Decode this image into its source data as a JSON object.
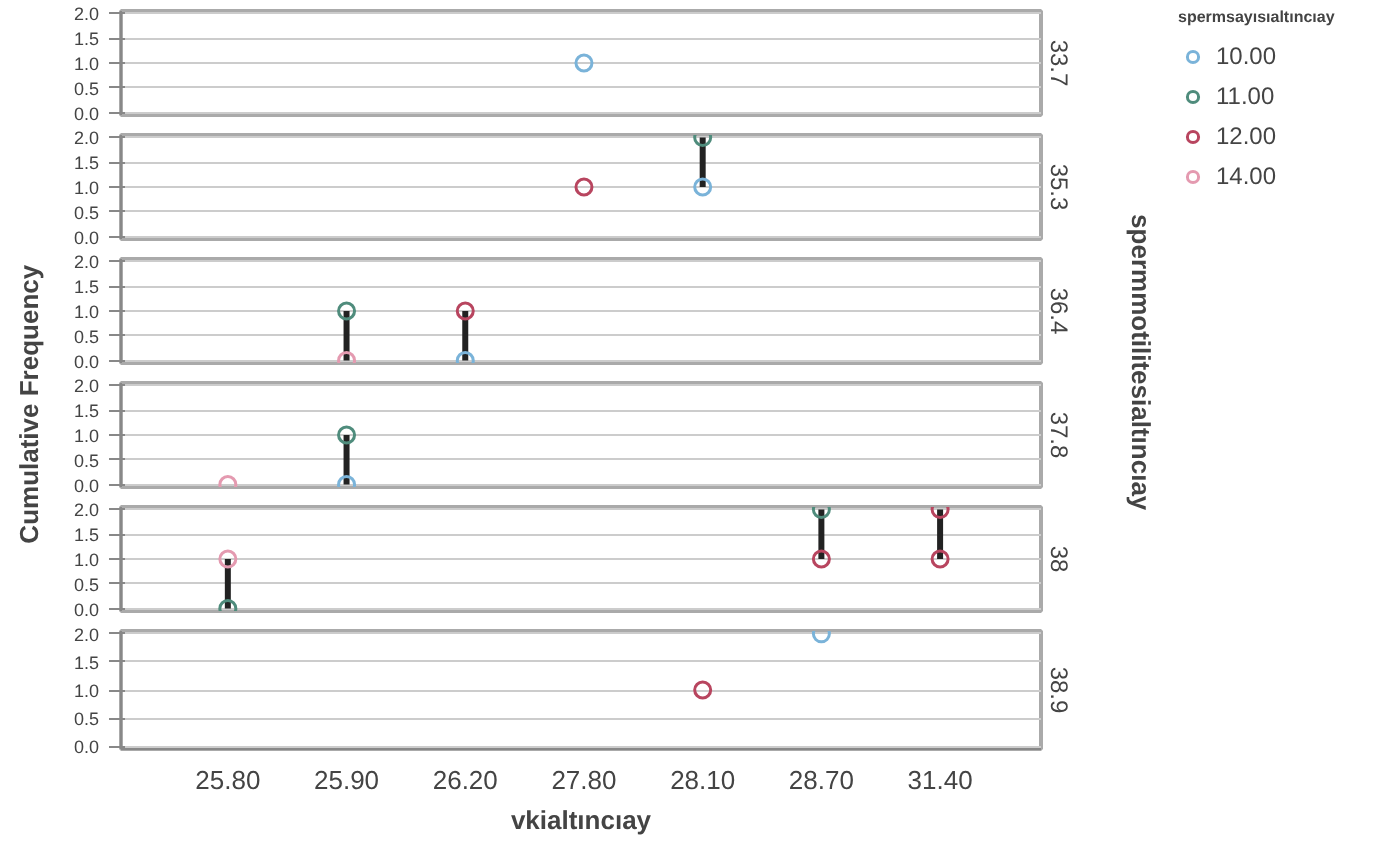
{
  "chart_data": [
    {
      "type": "scatter",
      "title": "33.7",
      "categories": [
        "25.80",
        "25.90",
        "26.20",
        "27.80",
        "28.10",
        "28.70",
        "31.40"
      ],
      "ylim": [
        -0.05,
        2.05
      ],
      "yticks": [
        {
          "value": 0,
          "label": "0.0"
        },
        {
          "value": 0.5,
          "label": "0.5"
        },
        {
          "value": 1,
          "label": "1.0"
        },
        {
          "value": 1.5,
          "label": "1.5"
        },
        {
          "value": 2,
          "label": "2.0"
        }
      ],
      "grid": "y",
      "marker": "circle",
      "tick_labels": "y",
      "ylabel": "Cumulative Frequency",
      "y2label": "spermmotilitesialtıncıay",
      "legend": "right",
      "legend_title": "spermsayısıaltıncıay",
      "series": [
        {
          "name": "10.00",
          "color": "#7ab3d9",
          "x": [
            "27.80"
          ],
          "values": [
            1
          ]
        }
      ]
    },
    {
      "type": "scatter",
      "title": "35.3",
      "legend": "right",
      "categories": [
        "25.80",
        "25.90",
        "26.20",
        "27.80",
        "28.10",
        "28.70",
        "31.40"
      ],
      "ylim": [
        -0.05,
        2.05
      ],
      "yticks": [
        {
          "value": 0,
          "label": "0.0"
        },
        {
          "value": 0.5,
          "label": "0.5"
        },
        {
          "value": 1,
          "label": "1.0"
        },
        {
          "value": 1.5,
          "label": "1.5"
        },
        {
          "value": 2,
          "label": "2.0"
        }
      ],
      "grid": "y",
      "marker": "circle",
      "tick_labels": "y",
      "series": [
        {
          "type": "line",
          "marker": "none",
          "color": "#222222",
          "x": [
            "28.10",
            "28.10"
          ],
          "values": [
            1,
            2
          ]
        },
        {
          "color": "#7ab3d9",
          "x": [
            "28.10"
          ],
          "values": [
            1
          ]
        },
        {
          "name": "11.00",
          "color": "#4f8c7c",
          "x": [
            "28.10"
          ],
          "values": [
            2
          ]
        },
        {
          "name": "12.00",
          "color": "#b8455f",
          "x": [
            "27.80"
          ],
          "values": [
            1
          ]
        }
      ]
    },
    {
      "type": "scatter",
      "title": "36.4",
      "legend": "right",
      "categories": [
        "25.80",
        "25.90",
        "26.20",
        "27.80",
        "28.10",
        "28.70",
        "31.40"
      ],
      "ylim": [
        -0.05,
        2.05
      ],
      "yticks": [
        {
          "value": 0,
          "label": "0.0"
        },
        {
          "value": 0.5,
          "label": "0.5"
        },
        {
          "value": 1,
          "label": "1.0"
        },
        {
          "value": 1.5,
          "label": "1.5"
        },
        {
          "value": 2,
          "label": "2.0"
        }
      ],
      "grid": "y",
      "marker": "circle",
      "tick_labels": "y",
      "series": [
        {
          "type": "line",
          "marker": "none",
          "color": "#222222",
          "x": [
            "25.90",
            "25.90"
          ],
          "values": [
            0,
            1
          ]
        },
        {
          "type": "line",
          "marker": "none",
          "color": "#222222",
          "x": [
            "26.20",
            "26.20"
          ],
          "values": [
            0,
            1
          ]
        },
        {
          "color": "#7ab3d9",
          "x": [
            "26.20"
          ],
          "values": [
            0
          ]
        },
        {
          "color": "#4f8c7c",
          "x": [
            "25.90"
          ],
          "values": [
            1
          ]
        },
        {
          "color": "#b8455f",
          "x": [
            "26.20"
          ],
          "values": [
            1
          ]
        },
        {
          "name": "14.00",
          "color": "#e49ab0",
          "x": [
            "25.90"
          ],
          "values": [
            0
          ]
        }
      ]
    },
    {
      "type": "scatter",
      "title": "37.8",
      "categories": [
        "25.80",
        "25.90",
        "26.20",
        "27.80",
        "28.10",
        "28.70",
        "31.40"
      ],
      "ylim": [
        -0.05,
        2.05
      ],
      "yticks": [
        {
          "value": 0,
          "label": "0.0"
        },
        {
          "value": 0.5,
          "label": "0.5"
        },
        {
          "value": 1,
          "label": "1.0"
        },
        {
          "value": 1.5,
          "label": "1.5"
        },
        {
          "value": 2,
          "label": "2.0"
        }
      ],
      "grid": "y",
      "marker": "circle",
      "tick_labels": "y",
      "series": [
        {
          "type": "line",
          "marker": "none",
          "color": "#222222",
          "x": [
            "25.90",
            "25.90"
          ],
          "values": [
            0,
            1
          ]
        },
        {
          "color": "#7ab3d9",
          "x": [
            "25.90"
          ],
          "values": [
            0
          ]
        },
        {
          "color": "#4f8c7c",
          "x": [
            "25.90"
          ],
          "values": [
            1
          ]
        },
        {
          "color": "#e49ab0",
          "x": [
            "25.80"
          ],
          "values": [
            0
          ]
        }
      ]
    },
    {
      "type": "scatter",
      "title": "38",
      "categories": [
        "25.80",
        "25.90",
        "26.20",
        "27.80",
        "28.10",
        "28.70",
        "31.40"
      ],
      "ylim": [
        -0.05,
        2.05
      ],
      "yticks": [
        {
          "value": 0,
          "label": "0.0"
        },
        {
          "value": 0.5,
          "label": "0.5"
        },
        {
          "value": 1,
          "label": "1.0"
        },
        {
          "value": 1.5,
          "label": "1.5"
        },
        {
          "value": 2,
          "label": "2.0"
        }
      ],
      "grid": "y",
      "marker": "circle",
      "tick_labels": "y",
      "series": [
        {
          "type": "line",
          "marker": "none",
          "color": "#222222",
          "x": [
            "25.80",
            "25.80"
          ],
          "values": [
            0,
            1
          ]
        },
        {
          "type": "line",
          "marker": "none",
          "color": "#222222",
          "x": [
            "28.70",
            "28.70"
          ],
          "values": [
            1,
            2
          ]
        },
        {
          "type": "line",
          "marker": "none",
          "color": "#222222",
          "x": [
            "31.40",
            "31.40"
          ],
          "values": [
            1,
            2
          ]
        },
        {
          "color": "#4f8c7c",
          "x": [
            "25.80",
            "28.70"
          ],
          "values": [
            0,
            2
          ]
        },
        {
          "color": "#b8455f",
          "x": [
            "28.70",
            "31.40",
            "31.40"
          ],
          "values": [
            1,
            1,
            2
          ]
        },
        {
          "color": "#e49ab0",
          "x": [
            "25.80"
          ],
          "values": [
            1
          ]
        }
      ]
    },
    {
      "type": "scatter",
      "title": "38.9",
      "categories": [
        "25.80",
        "25.90",
        "26.20",
        "27.80",
        "28.10",
        "28.70",
        "31.40"
      ],
      "ylim": [
        -0.05,
        2.05
      ],
      "yticks": [
        {
          "value": 0,
          "label": "0.0"
        },
        {
          "value": 0.5,
          "label": "0.5"
        },
        {
          "value": 1,
          "label": "1.0"
        },
        {
          "value": 1.5,
          "label": "1.5"
        },
        {
          "value": 2,
          "label": "2.0"
        }
      ],
      "grid": "y",
      "marker": "circle",
      "xlabel": "vkialtıncıay",
      "series": [
        {
          "color": "#7ab3d9",
          "x": [
            "28.70"
          ],
          "values": [
            2
          ]
        },
        {
          "color": "#b8455f",
          "x": [
            "28.10"
          ],
          "values": [
            1
          ]
        }
      ]
    }
  ]
}
